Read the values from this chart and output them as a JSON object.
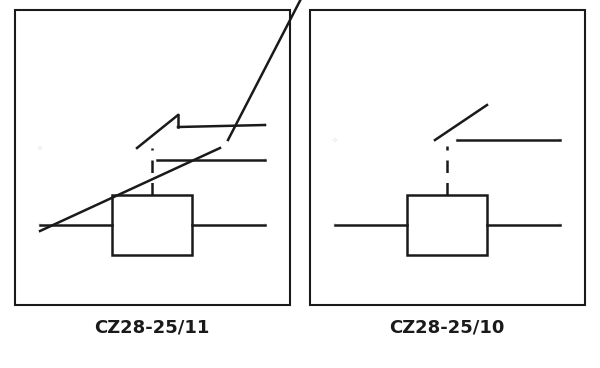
{
  "bg_color": "#ffffff",
  "line_color": "#1a1a1a",
  "title_left": "CZ28-25/11",
  "title_right": "CZ28-25/10",
  "title_fontsize": 13,
  "lw": 1.8,
  "cr": 0.018,
  "fig_width": 6.0,
  "fig_height": 3.68
}
